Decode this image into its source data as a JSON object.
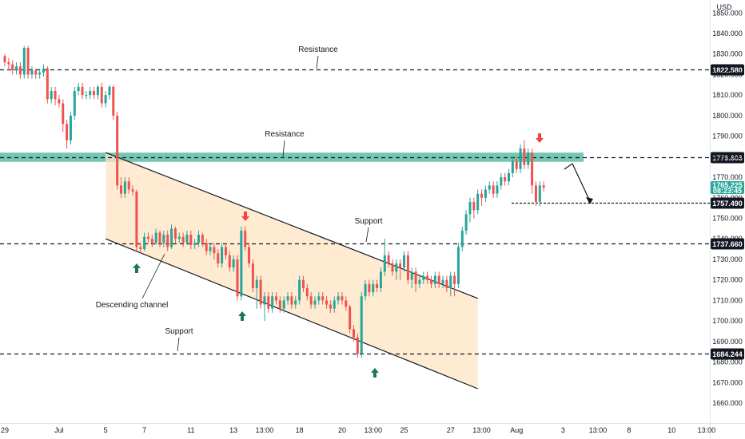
{
  "chart_data": {
    "type": "candlestick",
    "currency": "USD",
    "y_axis": {
      "ticks": [
        1660,
        1670,
        1680,
        1690,
        1700,
        1710,
        1720,
        1730,
        1740,
        1750,
        1760,
        1770,
        1780,
        1790,
        1800,
        1810,
        1820,
        1830,
        1840,
        1850
      ],
      "tick_labels": [
        "1660.000",
        "1670.000",
        "1680.000",
        "1690.000",
        "1700.000",
        "1710.000",
        "1720.000",
        "1730.000",
        "1740.000",
        "1750.000",
        "1760.000",
        "1770.000",
        "1780.000",
        "1790.000",
        "1800.000",
        "1810.000",
        "1820.000",
        "1830.000",
        "1840.000",
        "1850.000"
      ],
      "range": [
        1652,
        1855
      ]
    },
    "x_axis": {
      "labels": [
        {
          "text": "29",
          "bar": 0
        },
        {
          "text": "Jul",
          "bar": 14
        },
        {
          "text": "5",
          "bar": 26
        },
        {
          "text": "7",
          "bar": 36
        },
        {
          "text": "11",
          "bar": 48
        },
        {
          "text": "13",
          "bar": 59
        },
        {
          "text": "13:00",
          "bar": 67
        },
        {
          "text": "18",
          "bar": 76
        },
        {
          "text": "20",
          "bar": 87
        },
        {
          "text": "13:00",
          "bar": 95
        },
        {
          "text": "25",
          "bar": 103
        },
        {
          "text": "27",
          "bar": 115
        },
        {
          "text": "13:00",
          "bar": 123
        },
        {
          "text": "Aug",
          "bar": 132
        },
        {
          "text": "3",
          "bar": 144
        },
        {
          "text": "13:00",
          "bar": 153
        },
        {
          "text": "8",
          "bar": 161
        },
        {
          "text": "10",
          "bar": 172
        },
        {
          "text": "13:00",
          "bar": 181
        }
      ]
    },
    "candles": [
      [
        1829,
        1826,
        1830,
        1824
      ],
      [
        1826,
        1825,
        1828,
        1822
      ],
      [
        1825,
        1822,
        1827,
        1820
      ],
      [
        1822,
        1824,
        1826,
        1820
      ],
      [
        1824,
        1820,
        1826,
        1818
      ],
      [
        1820,
        1833,
        1834,
        1818
      ],
      [
        1833,
        1820,
        1834,
        1818
      ],
      [
        1820,
        1822,
        1824,
        1818
      ],
      [
        1822,
        1820,
        1823,
        1818
      ],
      [
        1820,
        1821,
        1823,
        1818
      ],
      [
        1821,
        1823,
        1825,
        1819
      ],
      [
        1823,
        1808,
        1824,
        1806
      ],
      [
        1808,
        1812,
        1814,
        1806
      ],
      [
        1812,
        1808,
        1814,
        1805
      ],
      [
        1808,
        1806,
        1810,
        1804
      ],
      [
        1806,
        1796,
        1808,
        1792
      ],
      [
        1796,
        1788,
        1798,
        1784
      ],
      [
        1788,
        1800,
        1802,
        1786
      ],
      [
        1800,
        1812,
        1814,
        1798
      ],
      [
        1812,
        1814,
        1816,
        1810
      ],
      [
        1814,
        1810,
        1816,
        1808
      ],
      [
        1810,
        1810,
        1812,
        1808
      ],
      [
        1810,
        1812,
        1814,
        1808
      ],
      [
        1812,
        1810,
        1814,
        1808
      ],
      [
        1810,
        1814,
        1815,
        1808
      ],
      [
        1814,
        1806,
        1816,
        1804
      ],
      [
        1806,
        1810,
        1812,
        1804
      ],
      [
        1810,
        1814,
        1815,
        1808
      ],
      [
        1814,
        1800,
        1815,
        1798
      ],
      [
        1800,
        1766,
        1802,
        1764
      ],
      [
        1766,
        1762,
        1770,
        1760
      ],
      [
        1762,
        1768,
        1770,
        1760
      ],
      [
        1768,
        1764,
        1770,
        1762
      ],
      [
        1764,
        1763,
        1766,
        1761
      ],
      [
        1763,
        1736,
        1764,
        1734
      ],
      [
        1736,
        1735,
        1738,
        1733
      ],
      [
        1735,
        1741,
        1743,
        1734
      ],
      [
        1741,
        1740,
        1743,
        1738
      ],
      [
        1740,
        1738,
        1742,
        1736
      ],
      [
        1738,
        1743,
        1745,
        1737
      ],
      [
        1743,
        1738,
        1744,
        1736
      ],
      [
        1738,
        1742,
        1744,
        1736
      ],
      [
        1742,
        1736,
        1744,
        1734
      ],
      [
        1736,
        1745,
        1747,
        1735
      ],
      [
        1745,
        1740,
        1746,
        1738
      ],
      [
        1740,
        1741,
        1743,
        1738
      ],
      [
        1741,
        1738,
        1743,
        1736
      ],
      [
        1738,
        1742,
        1744,
        1737
      ],
      [
        1742,
        1737,
        1744,
        1735
      ],
      [
        1737,
        1738,
        1740,
        1735
      ],
      [
        1738,
        1742,
        1744,
        1736
      ],
      [
        1742,
        1738,
        1743,
        1736
      ],
      [
        1738,
        1734,
        1740,
        1732
      ],
      [
        1734,
        1736,
        1738,
        1732
      ],
      [
        1736,
        1733,
        1738,
        1730
      ],
      [
        1733,
        1728,
        1735,
        1726
      ],
      [
        1728,
        1736,
        1738,
        1726
      ],
      [
        1736,
        1732,
        1738,
        1730
      ],
      [
        1732,
        1726,
        1734,
        1724
      ],
      [
        1726,
        1730,
        1732,
        1724
      ],
      [
        1730,
        1712,
        1732,
        1710
      ],
      [
        1712,
        1744,
        1746,
        1710
      ],
      [
        1744,
        1736,
        1746,
        1734
      ],
      [
        1736,
        1728,
        1738,
        1726
      ],
      [
        1728,
        1716,
        1730,
        1714
      ],
      [
        1716,
        1720,
        1722,
        1706
      ],
      [
        1720,
        1708,
        1722,
        1706
      ],
      [
        1708,
        1712,
        1714,
        1700
      ],
      [
        1712,
        1706,
        1714,
        1704
      ],
      [
        1706,
        1712,
        1714,
        1704
      ],
      [
        1712,
        1710,
        1714,
        1708
      ],
      [
        1710,
        1706,
        1712,
        1704
      ],
      [
        1706,
        1710,
        1712,
        1704
      ],
      [
        1710,
        1712,
        1714,
        1708
      ],
      [
        1712,
        1708,
        1714,
        1706
      ],
      [
        1708,
        1710,
        1712,
        1706
      ],
      [
        1710,
        1720,
        1722,
        1708
      ],
      [
        1720,
        1716,
        1722,
        1714
      ],
      [
        1716,
        1712,
        1718,
        1710
      ],
      [
        1712,
        1708,
        1714,
        1706
      ],
      [
        1708,
        1710,
        1712,
        1706
      ],
      [
        1710,
        1712,
        1714,
        1708
      ],
      [
        1712,
        1710,
        1714,
        1708
      ],
      [
        1710,
        1708,
        1712,
        1706
      ],
      [
        1708,
        1706,
        1710,
        1704
      ],
      [
        1706,
        1710,
        1712,
        1704
      ],
      [
        1710,
        1712,
        1714,
        1708
      ],
      [
        1712,
        1710,
        1714,
        1708
      ],
      [
        1710,
        1707,
        1712,
        1705
      ],
      [
        1707,
        1696,
        1708,
        1694
      ],
      [
        1696,
        1692,
        1698,
        1690
      ],
      [
        1692,
        1684,
        1694,
        1682
      ],
      [
        1684,
        1712,
        1714,
        1682
      ],
      [
        1712,
        1718,
        1720,
        1710
      ],
      [
        1718,
        1714,
        1720,
        1712
      ],
      [
        1714,
        1718,
        1720,
        1712
      ],
      [
        1718,
        1716,
        1720,
        1714
      ],
      [
        1716,
        1724,
        1726,
        1714
      ],
      [
        1724,
        1732,
        1740,
        1722
      ],
      [
        1732,
        1728,
        1734,
        1726
      ],
      [
        1728,
        1724,
        1730,
        1722
      ],
      [
        1724,
        1728,
        1730,
        1720
      ],
      [
        1728,
        1726,
        1730,
        1720
      ],
      [
        1726,
        1732,
        1734,
        1724
      ],
      [
        1732,
        1720,
        1734,
        1718
      ],
      [
        1720,
        1724,
        1726,
        1716
      ],
      [
        1724,
        1718,
        1726,
        1714
      ],
      [
        1718,
        1720,
        1722,
        1716
      ],
      [
        1720,
        1722,
        1724,
        1718
      ],
      [
        1722,
        1720,
        1724,
        1718
      ],
      [
        1720,
        1718,
        1722,
        1716
      ],
      [
        1718,
        1722,
        1724,
        1716
      ],
      [
        1722,
        1718,
        1724,
        1716
      ],
      [
        1718,
        1720,
        1722,
        1716
      ],
      [
        1720,
        1716,
        1722,
        1714
      ],
      [
        1716,
        1722,
        1724,
        1712
      ],
      [
        1722,
        1718,
        1724,
        1712
      ],
      [
        1718,
        1736,
        1738,
        1716
      ],
      [
        1736,
        1744,
        1746,
        1734
      ],
      [
        1744,
        1752,
        1754,
        1742
      ],
      [
        1752,
        1758,
        1760,
        1748
      ],
      [
        1758,
        1754,
        1760,
        1750
      ],
      [
        1754,
        1762,
        1764,
        1752
      ],
      [
        1762,
        1760,
        1764,
        1756
      ],
      [
        1760,
        1764,
        1766,
        1758
      ],
      [
        1764,
        1766,
        1768,
        1762
      ],
      [
        1766,
        1762,
        1768,
        1760
      ],
      [
        1762,
        1766,
        1768,
        1760
      ],
      [
        1766,
        1770,
        1772,
        1764
      ],
      [
        1770,
        1768,
        1772,
        1766
      ],
      [
        1768,
        1772,
        1774,
        1766
      ],
      [
        1772,
        1778,
        1780,
        1770
      ],
      [
        1778,
        1774,
        1780,
        1772
      ],
      [
        1774,
        1784,
        1786,
        1772
      ],
      [
        1784,
        1776,
        1788,
        1774
      ],
      [
        1776,
        1782,
        1784,
        1774
      ],
      [
        1782,
        1766,
        1784,
        1762
      ],
      [
        1766,
        1758,
        1768,
        1756
      ],
      [
        1758,
        1766,
        1768,
        1756
      ],
      [
        1766,
        1765,
        1768,
        1763
      ]
    ],
    "current_price": "1765.225",
    "countdown": "08:23:45",
    "levels": [
      {
        "price": 1822.58,
        "label": "1822.580",
        "text": "Resistance"
      },
      {
        "price": 1779.803,
        "label": "1779.803",
        "text": "Resistance"
      },
      {
        "price": 1757.49,
        "label": "1757.490",
        "text": ""
      },
      {
        "price": 1737.66,
        "label": "1737.660",
        "text": "Support"
      },
      {
        "price": 1684.244,
        "label": "1684.244",
        "text": "Support"
      }
    ],
    "resistance_zone": [
      1777.5,
      1782
    ],
    "channel": {
      "label": "Descending channel",
      "upper": [
        [
          26,
          1782
        ],
        [
          122,
          1711
        ]
      ],
      "lower": [
        [
          26,
          1740
        ],
        [
          122,
          1667
        ]
      ]
    },
    "colors": {
      "up": "#26a69a",
      "down": "#ef5350",
      "zone": "#5dbda6",
      "channel_fill": "#fde4c3",
      "arrow_up": "#1b7a55",
      "arrow_down": "#ef4444",
      "text": "#131722",
      "price_pill": "#26a69a"
    }
  }
}
